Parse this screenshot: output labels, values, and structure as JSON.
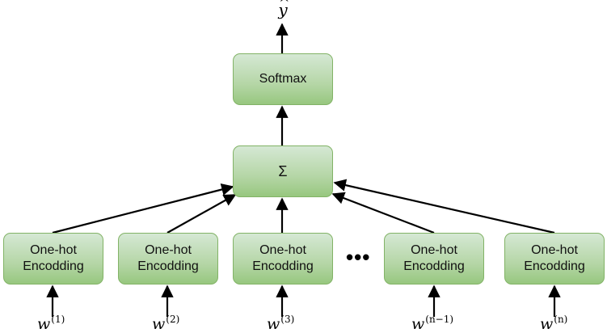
{
  "output": {
    "var": "y",
    "hat": "^"
  },
  "softmax": {
    "label": "Softmax"
  },
  "sum": {
    "label": "Σ"
  },
  "ellipsis": "•••",
  "encoders": [
    {
      "label": "One-hot\nEncodding",
      "input_base": "w",
      "input_sup": "(1)"
    },
    {
      "label": "One-hot\nEncodding",
      "input_base": "w",
      "input_sup": "(2)"
    },
    {
      "label": "One-hot\nEncodding",
      "input_base": "w",
      "input_sup": "(3)"
    },
    {
      "label": "One-hot\nEncodding",
      "input_base": "w",
      "input_sup": "(n−1)"
    },
    {
      "label": "One-hot\nEncodding",
      "input_base": "w",
      "input_sup": "(n)"
    }
  ]
}
